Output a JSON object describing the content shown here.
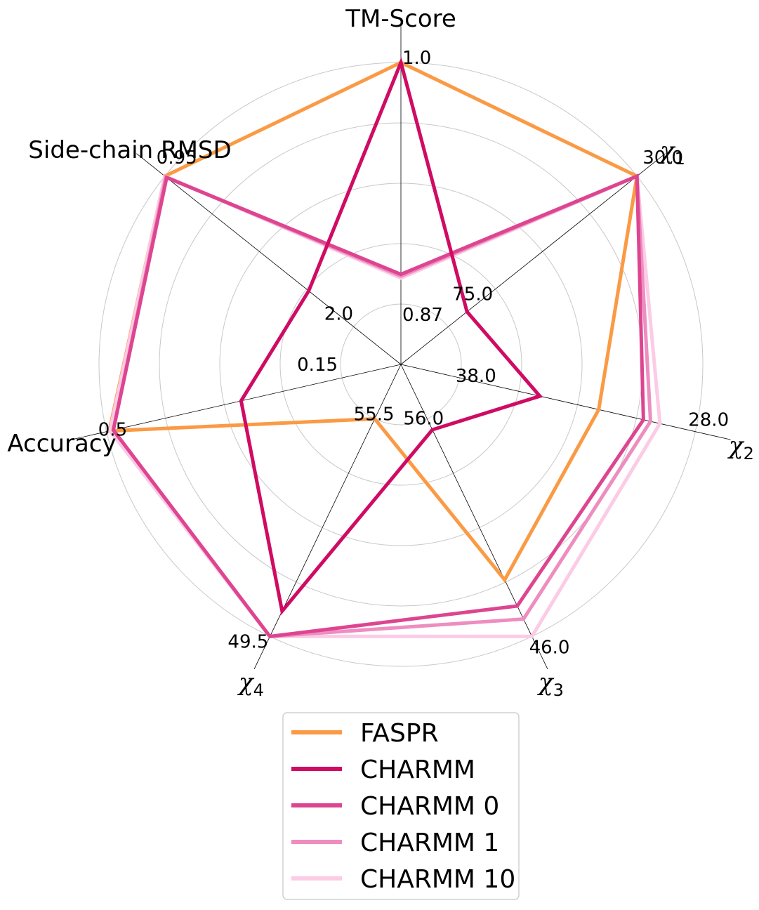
{
  "chart_data": {
    "type": "radar",
    "axes": [
      {
        "label": "TM-Score",
        "inner_tick": "0.87",
        "outer_tick": "1.0",
        "inner_value": 0.87,
        "outer_value": 1.0
      },
      {
        "label": "χ1",
        "label_base": "χ",
        "label_sub": "1",
        "inner_tick": "75.0",
        "outer_tick": "30.0",
        "inner_value": 75.0,
        "outer_value": 30.0
      },
      {
        "label": "χ2",
        "label_base": "χ",
        "label_sub": "2",
        "inner_tick": "38.0",
        "outer_tick": "28.0",
        "inner_value": 38.0,
        "outer_value": 28.0
      },
      {
        "label": "χ3",
        "label_base": "χ",
        "label_sub": "3",
        "inner_tick": "56.0",
        "outer_tick": "46.0",
        "inner_value": 56.0,
        "outer_value": 46.0
      },
      {
        "label": "χ4",
        "label_base": "χ",
        "label_sub": "4",
        "inner_tick": "55.5",
        "outer_tick": "49.5",
        "inner_value": 55.5,
        "outer_value": 49.5
      },
      {
        "label": "Accuracy",
        "inner_tick": "0.15",
        "outer_tick": "0.5",
        "inner_value": 0.15,
        "outer_value": 0.5
      },
      {
        "label": "Side-chain RMSD",
        "inner_tick": "2.0",
        "outer_tick": "0.95",
        "inner_value": 2.0,
        "outer_value": 0.95
      }
    ],
    "series": [
      {
        "name": "FASPR",
        "color": "#fb9a44",
        "values": [
          1.0,
          30.0,
          32.1,
          48.6,
          55.5,
          0.496,
          0.95
        ]
      },
      {
        "name": "CHARMM 10",
        "color": "#fccbe6",
        "values": [
          0.884,
          30.0,
          29.5,
          46.0,
          49.5,
          0.495,
          0.95
        ]
      },
      {
        "name": "CHARMM 1",
        "color": "#ee8dc0",
        "values": [
          0.885,
          30.0,
          29.9,
          46.8,
          49.5,
          0.49,
          0.955
        ]
      },
      {
        "name": "CHARMM 0",
        "color": "#dd4590",
        "values": [
          0.886,
          30.0,
          30.2,
          47.4,
          49.5,
          0.49,
          0.96
        ]
      },
      {
        "name": "CHARMM",
        "color": "#cf0b63",
        "values": [
          1.0,
          70.5,
          34.6,
          55.5,
          50.2,
          0.3,
          1.75
        ]
      }
    ],
    "legend_order": [
      "FASPR",
      "CHARMM",
      "CHARMM 0",
      "CHARMM 1",
      "CHARMM 10"
    ],
    "rings": 5,
    "grid": true,
    "legend": "bottom-center"
  }
}
